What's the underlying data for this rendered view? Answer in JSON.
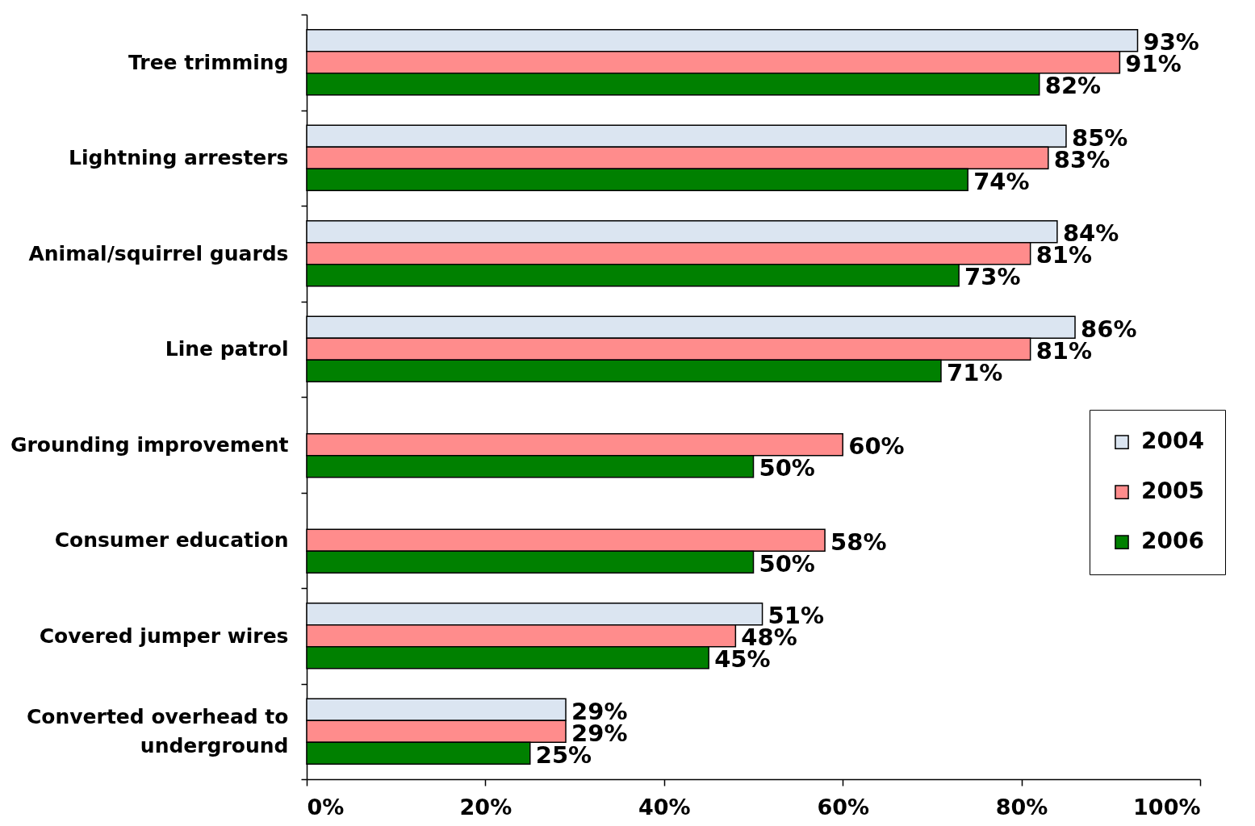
{
  "chart_data": {
    "type": "bar",
    "orientation": "horizontal",
    "categories": [
      "Tree trimming",
      "Lightning arresters",
      "Animal/squirrel guards",
      "Line patrol",
      "Grounding improvement",
      "Consumer education",
      "Covered jumper wires",
      "Converted overhead to underground"
    ],
    "series": [
      {
        "name": "2004",
        "color": "#dbe5f1",
        "values": [
          93,
          85,
          84,
          86,
          null,
          null,
          51,
          29
        ],
        "value_labels": [
          "93%",
          "85%",
          "84%",
          "86%",
          null,
          null,
          "51%",
          "29%"
        ]
      },
      {
        "name": "2005",
        "color": "#ff8c8c",
        "values": [
          91,
          83,
          81,
          81,
          60,
          58,
          48,
          29
        ],
        "value_labels": [
          "91%",
          "83%",
          "81%",
          "81%",
          "60%",
          "58%",
          "48%",
          "29%"
        ]
      },
      {
        "name": "2006",
        "color": "#008000",
        "values": [
          82,
          74,
          73,
          71,
          50,
          50,
          45,
          25
        ],
        "value_labels": [
          "82%",
          "74%",
          "73%",
          "71%",
          "50%",
          "50%",
          "45%",
          "25%"
        ]
      }
    ],
    "xlim": [
      0,
      100
    ],
    "xticks": [
      {
        "value": 0,
        "label": "0%"
      },
      {
        "value": 20,
        "label": "20%"
      },
      {
        "value": 40,
        "label": "40%"
      },
      {
        "value": 60,
        "label": "60%"
      },
      {
        "value": 80,
        "label": "80%"
      },
      {
        "value": 100,
        "label": "100%"
      }
    ],
    "grid": false,
    "legend": "right"
  }
}
